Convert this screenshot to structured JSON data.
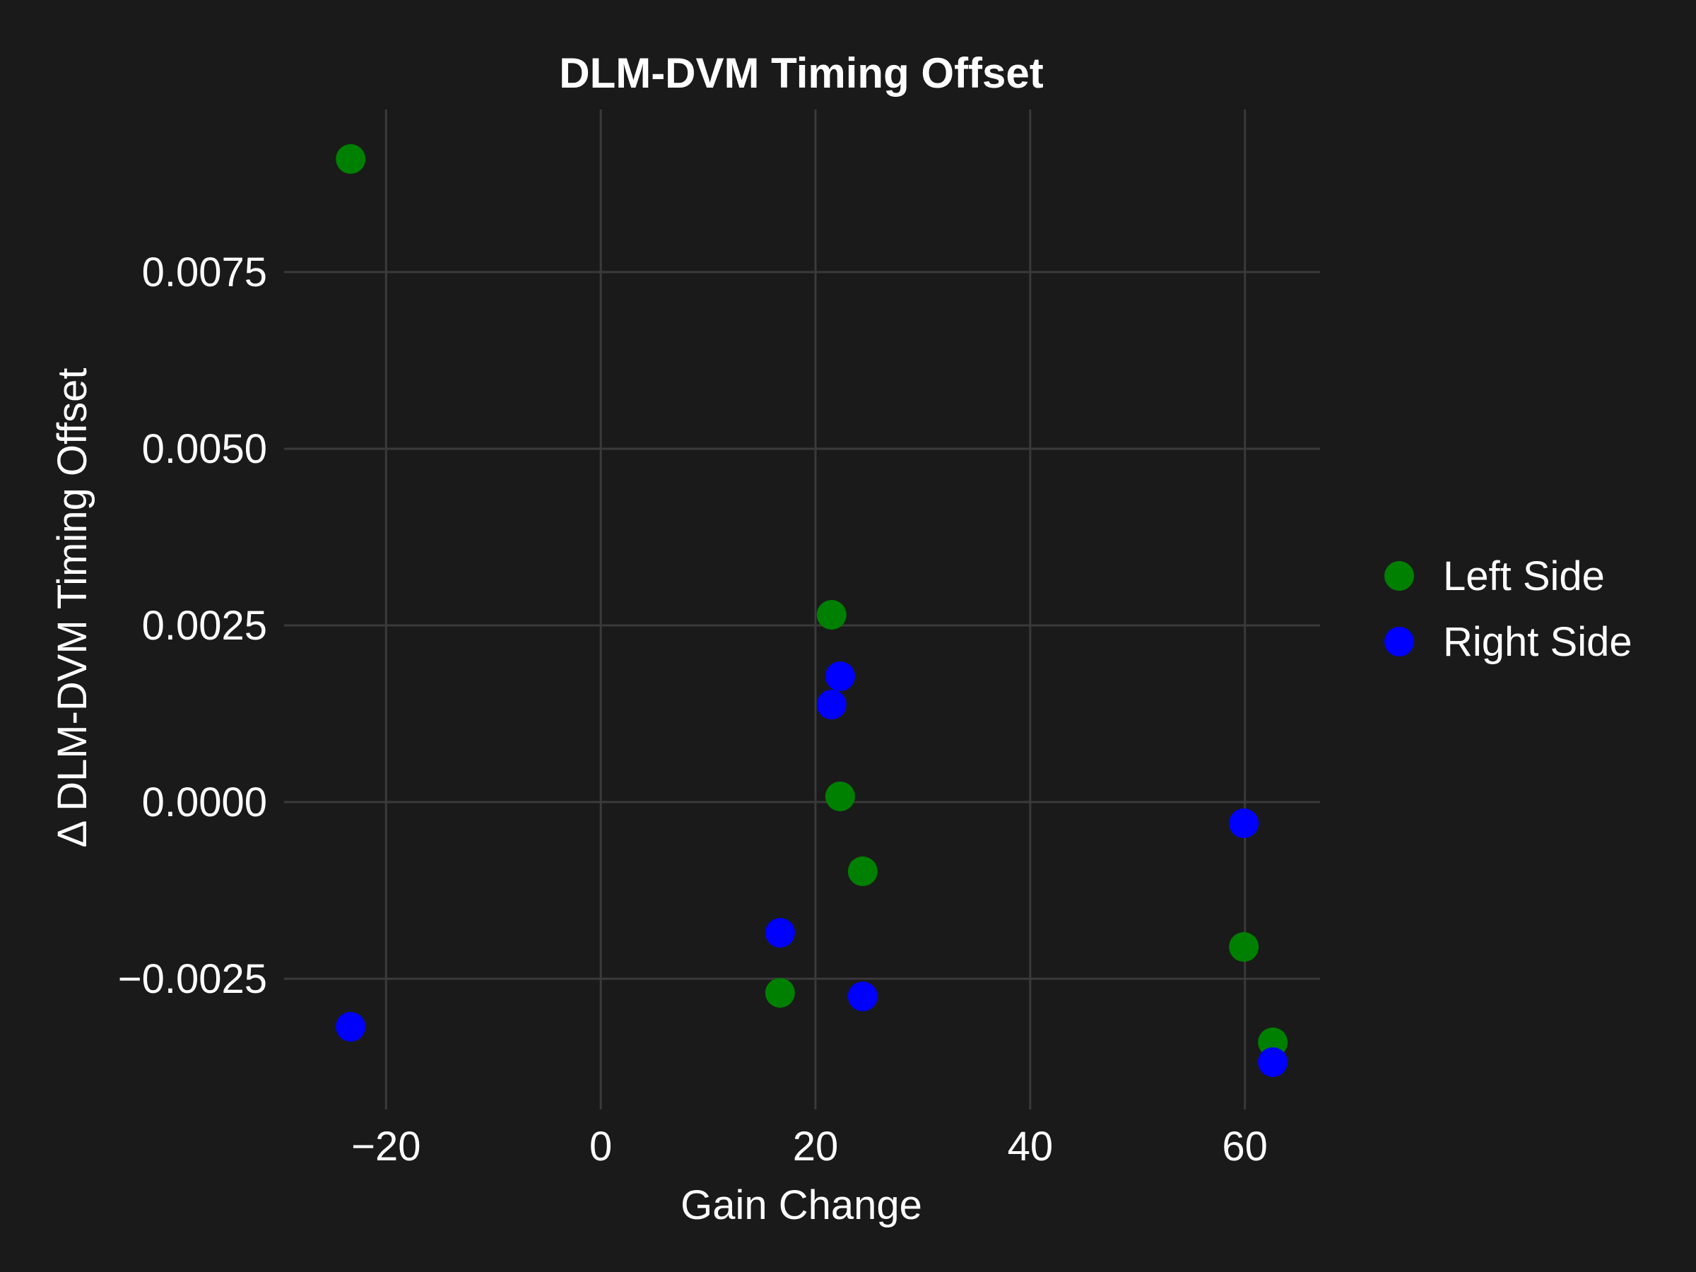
{
  "chart_data": {
    "type": "scatter",
    "title": "DLM-DVM Timing Offset",
    "xlabel": "Gain Change",
    "ylabel": "Δ DLM-DVM Timing Offset",
    "xlim": [
      -29.5,
      67
    ],
    "ylim": [
      -0.00435,
      0.0098
    ],
    "xticks": [
      -20,
      0,
      20,
      40,
      60
    ],
    "xtick_labels": [
      "−20",
      "0",
      "20",
      "40",
      "60"
    ],
    "yticks": [
      -0.0025,
      0.0,
      0.0025,
      0.005,
      0.0075
    ],
    "ytick_labels": [
      "−0.0025",
      "0.0000",
      "0.0025",
      "0.0050",
      "0.0075"
    ],
    "grid": true,
    "legend_position": "right",
    "series": [
      {
        "name": "Left Side",
        "color": "#008000",
        "points": [
          {
            "x": -23.3,
            "y": 0.0091
          },
          {
            "x": 21.5,
            "y": 0.00265
          },
          {
            "x": 22.3,
            "y": 8e-05
          },
          {
            "x": 24.4,
            "y": -0.00098
          },
          {
            "x": 16.7,
            "y": -0.0027
          },
          {
            "x": 59.9,
            "y": -0.00205
          },
          {
            "x": 62.6,
            "y": -0.0034
          }
        ]
      },
      {
        "name": "Right Side",
        "color": "#0000ff",
        "points": [
          {
            "x": 22.3,
            "y": 0.00178
          },
          {
            "x": 21.5,
            "y": 0.00138
          },
          {
            "x": 59.9,
            "y": -0.0003
          },
          {
            "x": 16.7,
            "y": -0.00185
          },
          {
            "x": 24.4,
            "y": -0.00275
          },
          {
            "x": -23.3,
            "y": -0.00318
          },
          {
            "x": 62.6,
            "y": -0.00368
          }
        ]
      }
    ]
  }
}
